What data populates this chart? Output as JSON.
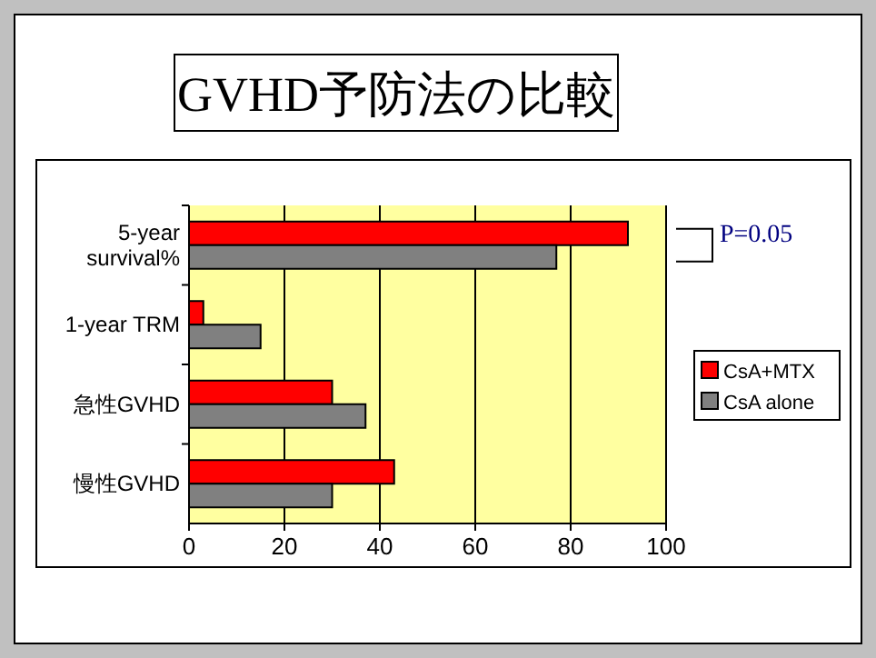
{
  "chart_data": {
    "type": "bar",
    "orientation": "horizontal",
    "title": "GVHD予防法の比較",
    "categories": [
      "5-year survival%",
      "1-year TRM",
      "急性GVHD",
      "慢性GVHD"
    ],
    "series": [
      {
        "name": "CsA+MTX",
        "color": "#ff0000",
        "values": [
          92,
          3,
          30,
          43
        ]
      },
      {
        "name": "CsA alone",
        "color": "#808080",
        "values": [
          77,
          15,
          37,
          30
        ]
      }
    ],
    "xlim": [
      0,
      100
    ],
    "xticks": [
      0,
      20,
      40,
      60,
      80,
      100
    ],
    "grid": "x",
    "legend": "right",
    "annotations": [
      "P=0.05"
    ]
  }
}
